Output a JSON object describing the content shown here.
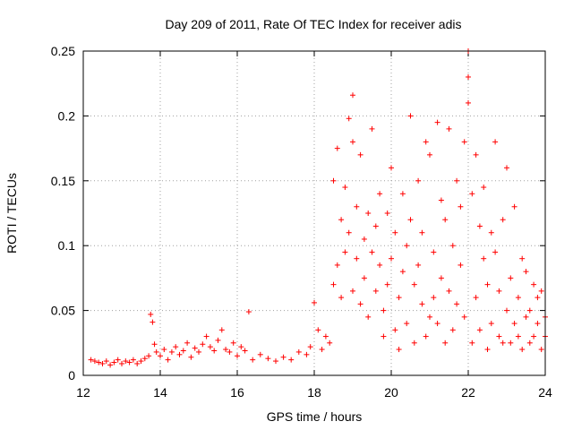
{
  "chart_data": {
    "type": "scatter",
    "title": "Day 209 of 2011, Rate Of TEC Index for receiver adis",
    "xlabel": "GPS time / hours",
    "ylabel": "ROTI / TECUs",
    "xlim": [
      12,
      24
    ],
    "ylim": [
      0,
      0.25
    ],
    "xticks": [
      12,
      14,
      16,
      18,
      20,
      22,
      24
    ],
    "xtick_labels": [
      "12",
      "14",
      "16",
      "18",
      "20",
      "22",
      "24"
    ],
    "yticks": [
      0,
      0.05,
      0.1,
      0.15,
      0.2,
      0.25
    ],
    "ytick_labels": [
      "0",
      "0.05",
      "0.1",
      "0.15",
      "0.2",
      "0.25"
    ],
    "grid": true,
    "marker": "+",
    "marker_color": "#ff0000",
    "series": [
      {
        "name": "ROTI",
        "x": [
          12.2,
          12.3,
          12.4,
          12.5,
          12.6,
          12.7,
          12.8,
          12.9,
          13.0,
          13.1,
          13.2,
          13.3,
          13.4,
          13.5,
          13.6,
          13.7,
          13.75,
          13.8,
          13.85,
          13.9,
          14.0,
          14.1,
          14.2,
          14.3,
          14.4,
          14.5,
          14.6,
          14.7,
          14.8,
          14.9,
          15.0,
          15.1,
          15.2,
          15.3,
          15.4,
          15.5,
          15.6,
          15.7,
          15.8,
          15.9,
          16.0,
          16.1,
          16.2,
          16.3,
          16.4,
          16.6,
          16.8,
          17.0,
          17.2,
          17.4,
          17.6,
          17.8,
          17.9,
          18.0,
          18.1,
          18.2,
          18.3,
          18.4,
          18.5,
          18.5,
          18.6,
          18.6,
          18.7,
          18.7,
          18.8,
          18.8,
          18.9,
          18.9,
          19.0,
          19.0,
          19.0,
          19.1,
          19.1,
          19.2,
          19.2,
          19.3,
          19.3,
          19.4,
          19.4,
          19.5,
          19.5,
          19.6,
          19.6,
          19.7,
          19.7,
          19.8,
          19.8,
          19.9,
          19.9,
          20.0,
          20.0,
          20.1,
          20.1,
          20.2,
          20.2,
          20.3,
          20.3,
          20.4,
          20.4,
          20.5,
          20.5,
          20.6,
          20.6,
          20.7,
          20.7,
          20.8,
          20.8,
          20.9,
          20.9,
          21.0,
          21.0,
          21.1,
          21.1,
          21.2,
          21.2,
          21.3,
          21.3,
          21.4,
          21.4,
          21.5,
          21.5,
          21.6,
          21.6,
          21.7,
          21.7,
          21.8,
          21.8,
          21.9,
          21.9,
          22.0,
          22.0,
          22.0,
          22.1,
          22.1,
          22.2,
          22.2,
          22.3,
          22.3,
          22.4,
          22.4,
          22.5,
          22.5,
          22.6,
          22.6,
          22.7,
          22.7,
          22.8,
          22.8,
          22.9,
          22.9,
          23.0,
          23.0,
          23.1,
          23.1,
          23.2,
          23.2,
          23.3,
          23.3,
          23.4,
          23.4,
          23.5,
          23.5,
          23.6,
          23.6,
          23.7,
          23.7,
          23.8,
          23.8,
          23.9,
          23.9,
          24.0,
          24.0
        ],
        "y": [
          0.012,
          0.011,
          0.01,
          0.009,
          0.011,
          0.008,
          0.01,
          0.012,
          0.009,
          0.011,
          0.01,
          0.012,
          0.009,
          0.011,
          0.013,
          0.015,
          0.047,
          0.041,
          0.024,
          0.018,
          0.015,
          0.02,
          0.012,
          0.018,
          0.022,
          0.016,
          0.019,
          0.025,
          0.014,
          0.021,
          0.018,
          0.024,
          0.03,
          0.022,
          0.019,
          0.027,
          0.035,
          0.02,
          0.018,
          0.025,
          0.015,
          0.022,
          0.019,
          0.049,
          0.012,
          0.016,
          0.013,
          0.011,
          0.014,
          0.012,
          0.018,
          0.016,
          0.022,
          0.056,
          0.035,
          0.02,
          0.03,
          0.025,
          0.07,
          0.15,
          0.085,
          0.175,
          0.06,
          0.12,
          0.095,
          0.145,
          0.11,
          0.198,
          0.216,
          0.065,
          0.18,
          0.13,
          0.09,
          0.17,
          0.055,
          0.105,
          0.075,
          0.125,
          0.045,
          0.095,
          0.19,
          0.065,
          0.115,
          0.085,
          0.14,
          0.03,
          0.05,
          0.125,
          0.07,
          0.16,
          0.09,
          0.035,
          0.11,
          0.06,
          0.02,
          0.14,
          0.08,
          0.04,
          0.1,
          0.2,
          0.12,
          0.07,
          0.025,
          0.15,
          0.085,
          0.055,
          0.11,
          0.18,
          0.03,
          0.045,
          0.17,
          0.06,
          0.095,
          0.195,
          0.04,
          0.135,
          0.075,
          0.025,
          0.12,
          0.19,
          0.065,
          0.1,
          0.035,
          0.15,
          0.055,
          0.085,
          0.13,
          0.18,
          0.045,
          0.25,
          0.23,
          0.21,
          0.14,
          0.025,
          0.17,
          0.06,
          0.115,
          0.035,
          0.09,
          0.145,
          0.02,
          0.07,
          0.11,
          0.04,
          0.095,
          0.18,
          0.03,
          0.065,
          0.12,
          0.025,
          0.16,
          0.05,
          0.075,
          0.025,
          0.13,
          0.04,
          0.06,
          0.03,
          0.09,
          0.02,
          0.045,
          0.08,
          0.025,
          0.05,
          0.07,
          0.03,
          0.04,
          0.06,
          0.02,
          0.065,
          0.03,
          0.045
        ]
      }
    ]
  }
}
